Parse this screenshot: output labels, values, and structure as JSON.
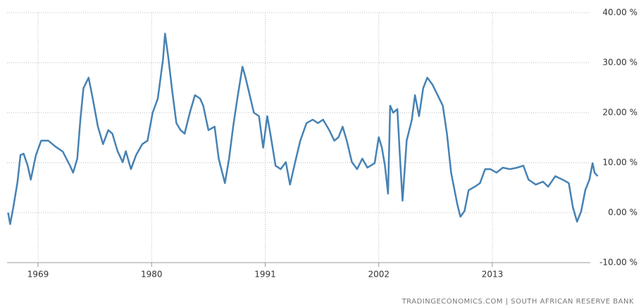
{
  "chart_data": {
    "type": "line",
    "source": "TRADINGECONOMICS.COM | SOUTH AFRICAN RESERVE BANK",
    "color": "#4682b4",
    "grid": true,
    "xlim": [
      1966,
      2023.3
    ],
    "xticks": [
      1969,
      1980,
      1991,
      2002,
      2013
    ],
    "ylim": [
      -10,
      40
    ],
    "yticks": [
      {
        "value": -10,
        "label": "-10.00 %"
      },
      {
        "value": 0,
        "label": "0.00 %"
      },
      {
        "value": 10,
        "label": "10.00 %"
      },
      {
        "value": 20,
        "label": "20.00 %"
      },
      {
        "value": 30,
        "label": "30.00 %"
      },
      {
        "value": 40,
        "label": "40.00 %"
      }
    ],
    "x": [
      1966.1,
      1966.3,
      1966.6,
      1967.0,
      1967.3,
      1967.6,
      1968.0,
      1968.3,
      1968.8,
      1969.3,
      1970.0,
      1970.7,
      1971.4,
      1972.1,
      1972.4,
      1972.8,
      1973.1,
      1973.4,
      1973.9,
      1974.3,
      1974.8,
      1975.3,
      1975.8,
      1976.2,
      1976.7,
      1977.2,
      1977.5,
      1978.0,
      1978.5,
      1979.1,
      1979.6,
      1980.1,
      1980.6,
      1981.1,
      1981.3,
      1981.6,
      1982.0,
      1982.4,
      1982.8,
      1983.2,
      1983.7,
      1984.2,
      1984.7,
      1985.0,
      1985.5,
      1986.1,
      1986.5,
      1987.1,
      1987.5,
      1987.9,
      1988.3,
      1988.8,
      1989.1,
      1989.5,
      1989.9,
      1990.4,
      1990.8,
      1991.2,
      1991.5,
      1992.0,
      1992.5,
      1993.0,
      1993.4,
      1993.9,
      1994.4,
      1995.0,
      1995.6,
      1996.1,
      1996.6,
      1997.2,
      1997.7,
      1998.1,
      1998.5,
      1998.9,
      1999.4,
      1999.9,
      2000.4,
      2000.9,
      2001.6,
      2002.0,
      2002.3,
      2002.6,
      2002.9,
      2003.1,
      2003.4,
      2003.8,
      2004.1,
      2004.3,
      2004.7,
      2005.2,
      2005.5,
      2005.9,
      2006.3,
      2006.7,
      2007.2,
      2007.7,
      2008.2,
      2008.6,
      2009.0,
      2009.6,
      2009.9,
      2010.3,
      2010.7,
      2011.3,
      2011.8,
      2012.3,
      2012.8,
      2013.4,
      2014.0,
      2014.7,
      2015.4,
      2016.0,
      2016.5,
      2017.2,
      2017.9,
      2018.4,
      2019.1,
      2019.8,
      2020.4,
      2020.8,
      2021.2,
      2021.6,
      2022.0,
      2022.4,
      2022.7,
      2022.9,
      2023.2
    ],
    "values": [
      0,
      -2.3,
      1,
      6,
      11.5,
      11.8,
      9.4,
      6.6,
      11.5,
      14.4,
      14.4,
      13.2,
      12.2,
      9.4,
      8,
      10.8,
      18.6,
      24.9,
      27,
      22.8,
      17.2,
      13.7,
      16.5,
      15.8,
      12.3,
      10.1,
      12.3,
      8.7,
      11.5,
      13.7,
      14.4,
      20,
      22.8,
      30.6,
      35.8,
      31.3,
      24.2,
      17.9,
      16.5,
      15.8,
      20,
      23.5,
      22.8,
      21.4,
      16.5,
      17.2,
      10.8,
      5.9,
      10.8,
      17.2,
      22.8,
      29.2,
      27,
      23.5,
      20,
      19.3,
      13,
      19.3,
      15.8,
      9.4,
      8.7,
      10.1,
      5.6,
      10.1,
      14.4,
      17.9,
      18.6,
      17.9,
      18.6,
      16.5,
      14.4,
      15.1,
      17.2,
      14.4,
      10.1,
      8.7,
      10.8,
      9,
      9.9,
      15.1,
      13,
      9.4,
      3.8,
      21.4,
      20,
      20.7,
      9.4,
      2.4,
      14.4,
      18.6,
      23.5,
      19.3,
      24.9,
      27,
      25.6,
      23.5,
      21.4,
      15.8,
      8,
      1.7,
      -0.8,
      0.3,
      4.5,
      5.2,
      5.9,
      8.7,
      8.7,
      8,
      9,
      8.7,
      9,
      9.4,
      6.6,
      5.6,
      6.2,
      5.2,
      7.3,
      6.6,
      5.9,
      1,
      -1.8,
      0.3,
      4.5,
      6.6,
      9.9,
      8,
      7.3
    ]
  }
}
